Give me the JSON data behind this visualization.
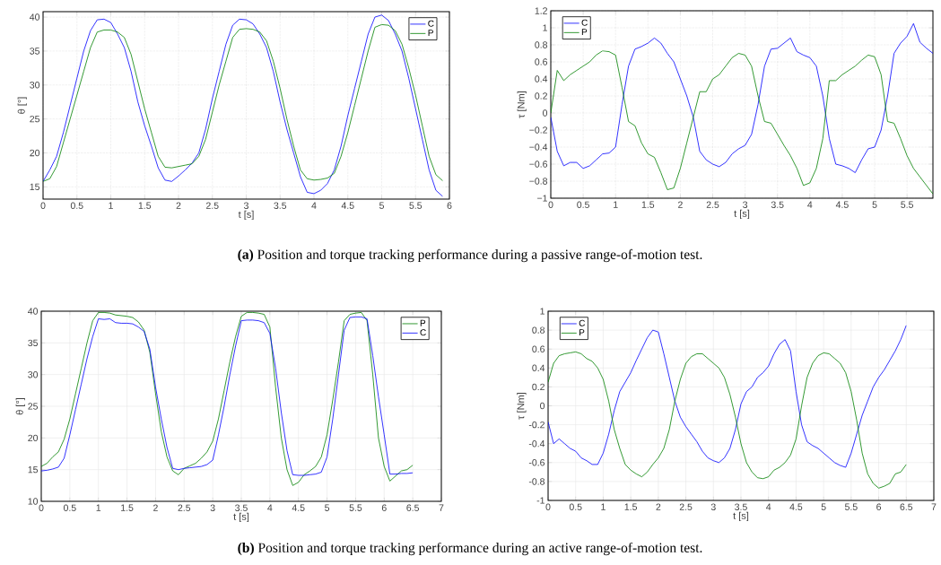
{
  "chart_data": [
    {
      "type": "line",
      "xlabel": "t [s]",
      "ylabel": "θ [°]",
      "xlim": [
        0,
        6
      ],
      "ylim": [
        13.2,
        40.8
      ],
      "xticks": [
        0,
        0.5,
        1,
        1.5,
        2,
        2.5,
        3,
        3.5,
        4,
        4.5,
        5,
        5.5,
        6
      ],
      "yticks": [
        15,
        20,
        25,
        30,
        35,
        40
      ],
      "grid": true,
      "legend": "top right",
      "annotations": [
        "**(a)** Position and torque tracking performance during a passive range-of-motion test."
      ],
      "x": [
        0,
        0.1,
        0.2,
        0.3,
        0.4,
        0.5,
        0.6,
        0.7,
        0.8,
        0.9,
        1.0,
        1.1,
        1.2,
        1.3,
        1.4,
        1.5,
        1.6,
        1.7,
        1.8,
        1.9,
        2.0,
        2.1,
        2.2,
        2.3,
        2.4,
        2.5,
        2.6,
        2.7,
        2.8,
        2.9,
        3.0,
        3.1,
        3.2,
        3.3,
        3.4,
        3.5,
        3.6,
        3.7,
        3.8,
        3.9,
        4.0,
        4.1,
        4.2,
        4.3,
        4.4,
        4.5,
        4.6,
        4.7,
        4.8,
        4.9,
        5.0,
        5.1,
        5.2,
        5.3,
        5.4,
        5.5,
        5.6,
        5.7,
        5.8,
        5.9
      ],
      "series": [
        {
          "name": "C",
          "color": "#0000ff",
          "values": [
            15.8,
            17.5,
            19.5,
            23,
            27,
            31,
            35,
            38,
            39.6,
            39.7,
            39.2,
            37.5,
            35.5,
            32,
            27.5,
            24,
            21,
            17.8,
            16,
            15.8,
            16.6,
            17.5,
            18.5,
            20,
            23.5,
            28,
            32,
            36,
            38.8,
            39.7,
            39.6,
            39,
            37.5,
            35.5,
            32,
            27.5,
            23.5,
            20,
            16.5,
            14.2,
            14,
            14.5,
            15.5,
            17.5,
            21,
            25.5,
            29.5,
            33.5,
            37.5,
            40,
            40.3,
            39.5,
            37.5,
            35,
            31,
            26.5,
            22,
            17.5,
            14.5,
            13.6
          ]
        },
        {
          "name": "P",
          "color": "#008000",
          "values": [
            15.8,
            16.2,
            18,
            21.5,
            25,
            28.5,
            32,
            35.5,
            37.8,
            38.1,
            38.1,
            37.8,
            37,
            34.5,
            30.5,
            26.5,
            23,
            19.5,
            17.9,
            17.8,
            18,
            18.2,
            18.4,
            19.5,
            22,
            26,
            30,
            33.5,
            37,
            38.2,
            38.3,
            38.2,
            37.8,
            36.5,
            33.5,
            29.5,
            25,
            21,
            17.5,
            16.2,
            16,
            16.1,
            16.3,
            17,
            19.5,
            23,
            27,
            31,
            35,
            38.5,
            38.9,
            38.8,
            38,
            36,
            32.5,
            28.5,
            24,
            19.5,
            16.8,
            15.9
          ]
        }
      ]
    },
    {
      "type": "line",
      "xlabel": "t [s]",
      "ylabel": "τ [Nm]",
      "xlim": [
        0,
        5.9
      ],
      "ylim": [
        -1,
        1.2
      ],
      "xticks": [
        0,
        0.5,
        1,
        1.5,
        2,
        2.5,
        3,
        3.5,
        4,
        4.5,
        5,
        5.5
      ],
      "yticks": [
        {
          "value": -1,
          "label": "−1"
        },
        {
          "value": -0.8,
          "label": "−0.8"
        },
        {
          "value": -0.6,
          "label": "−0.6"
        },
        {
          "value": -0.4,
          "label": "−0.4"
        },
        {
          "value": -0.2,
          "label": "−0.2"
        },
        0,
        0.2,
        0.4,
        0.6,
        0.8,
        1,
        1.2
      ],
      "grid": true,
      "legend": "top left",
      "x": [
        0,
        0.1,
        0.2,
        0.3,
        0.4,
        0.5,
        0.6,
        0.7,
        0.8,
        0.9,
        1.0,
        1.1,
        1.2,
        1.3,
        1.4,
        1.5,
        1.6,
        1.7,
        1.8,
        1.9,
        2.0,
        2.1,
        2.2,
        2.3,
        2.4,
        2.5,
        2.6,
        2.7,
        2.8,
        2.9,
        3.0,
        3.1,
        3.2,
        3.3,
        3.4,
        3.5,
        3.6,
        3.7,
        3.8,
        3.9,
        4.0,
        4.1,
        4.2,
        4.3,
        4.4,
        4.5,
        4.6,
        4.7,
        4.8,
        4.9,
        5.0,
        5.1,
        5.2,
        5.3,
        5.4,
        5.5,
        5.6,
        5.7,
        5.8,
        5.9
      ],
      "series": [
        {
          "name": "C",
          "color": "#0000ff",
          "values": [
            -0.05,
            -0.45,
            -0.62,
            -0.58,
            -0.58,
            -0.65,
            -0.62,
            -0.55,
            -0.48,
            -0.47,
            -0.4,
            0.1,
            0.55,
            0.75,
            0.78,
            0.82,
            0.88,
            0.82,
            0.7,
            0.6,
            0.4,
            0.2,
            -0.05,
            -0.45,
            -0.55,
            -0.6,
            -0.63,
            -0.58,
            -0.48,
            -0.42,
            -0.38,
            -0.25,
            0.1,
            0.55,
            0.75,
            0.76,
            0.82,
            0.88,
            0.72,
            0.68,
            0.65,
            0.55,
            0.2,
            -0.3,
            -0.6,
            -0.62,
            -0.65,
            -0.7,
            -0.55,
            -0.42,
            -0.4,
            -0.2,
            0.2,
            0.7,
            0.82,
            0.9,
            1.05,
            0.83,
            0.76,
            0.7
          ]
        },
        {
          "name": "P",
          "color": "#008000",
          "values": [
            0,
            0.5,
            0.38,
            0.45,
            0.5,
            0.55,
            0.6,
            0.68,
            0.73,
            0.72,
            0.68,
            0.3,
            -0.1,
            -0.15,
            -0.35,
            -0.48,
            -0.52,
            -0.7,
            -0.9,
            -0.88,
            -0.65,
            -0.35,
            -0.05,
            0.25,
            0.25,
            0.4,
            0.45,
            0.55,
            0.65,
            0.7,
            0.68,
            0.55,
            0.2,
            -0.1,
            -0.12,
            -0.25,
            -0.38,
            -0.5,
            -0.65,
            -0.85,
            -0.82,
            -0.65,
            -0.3,
            0.38,
            0.38,
            0.45,
            0.5,
            0.55,
            0.62,
            0.68,
            0.66,
            0.45,
            -0.1,
            -0.12,
            -0.3,
            -0.5,
            -0.65,
            -0.75,
            -0.85,
            -0.95
          ]
        }
      ]
    },
    {
      "type": "line",
      "xlabel": "t [s]",
      "ylabel": "θ [°]",
      "xlim": [
        0,
        7
      ],
      "ylim": [
        10,
        40
      ],
      "xticks": [
        0,
        0.5,
        1,
        1.5,
        2,
        2.5,
        3,
        3.5,
        4,
        4.5,
        5,
        5.5,
        6,
        6.5,
        7
      ],
      "yticks": [
        10,
        15,
        20,
        25,
        30,
        35,
        40
      ],
      "grid": true,
      "legend": "top right",
      "annotations": [
        "**(b)** Position and torque tracking performance during an active range-of-motion test."
      ],
      "x": [
        0,
        0.1,
        0.2,
        0.3,
        0.4,
        0.5,
        0.6,
        0.7,
        0.8,
        0.9,
        1.0,
        1.1,
        1.2,
        1.3,
        1.4,
        1.5,
        1.6,
        1.7,
        1.8,
        1.9,
        2.0,
        2.1,
        2.2,
        2.3,
        2.4,
        2.5,
        2.6,
        2.7,
        2.8,
        2.9,
        3.0,
        3.1,
        3.2,
        3.3,
        3.4,
        3.5,
        3.6,
        3.7,
        3.8,
        3.9,
        4.0,
        4.1,
        4.2,
        4.3,
        4.4,
        4.5,
        4.6,
        4.7,
        4.8,
        4.9,
        5.0,
        5.1,
        5.2,
        5.3,
        5.4,
        5.5,
        5.6,
        5.7,
        5.8,
        5.9,
        6.0,
        6.1,
        6.2,
        6.3,
        6.4,
        6.5
      ],
      "series": [
        {
          "name": "P",
          "color": "#008000",
          "values": [
            15.5,
            16,
            17,
            17.8,
            19.8,
            23,
            27,
            31,
            35,
            38.5,
            39.8,
            39.8,
            39.7,
            39.4,
            39.3,
            39.2,
            39,
            38.3,
            37,
            33.5,
            27,
            21,
            17,
            14.8,
            14.2,
            15.2,
            15.6,
            16,
            16.8,
            17.8,
            19.5,
            23,
            27.5,
            32,
            36,
            39.2,
            39.8,
            39.8,
            39.7,
            39.5,
            37.5,
            28,
            20,
            15,
            12.5,
            13,
            14.2,
            14.8,
            15.5,
            17,
            20.5,
            26,
            32,
            38.5,
            39.5,
            39.7,
            39.8,
            38.5,
            30,
            20,
            15.5,
            13.2,
            14,
            14.8,
            15,
            15.7
          ]
        },
        {
          "name": "C",
          "color": "#0000ff",
          "values": [
            14.8,
            14.9,
            15.1,
            15.4,
            16.8,
            20.5,
            24.5,
            28.5,
            32.5,
            36,
            38.8,
            38.7,
            38.8,
            38.2,
            38.1,
            38.1,
            38,
            37.5,
            36.8,
            34,
            28,
            23,
            18.5,
            15.2,
            15,
            15.2,
            15.3,
            15.4,
            15.5,
            15.8,
            16.5,
            20.5,
            25,
            30,
            34.5,
            38.5,
            38.6,
            38.6,
            38.5,
            38.2,
            36.5,
            31,
            24,
            18,
            14.2,
            14.1,
            14.1,
            14.2,
            14.3,
            14.6,
            17,
            23,
            30,
            37,
            39,
            39.1,
            39.1,
            38.8,
            33,
            26.5,
            20.5,
            14.3,
            14.3,
            14.4,
            14.4,
            14.5
          ]
        }
      ]
    },
    {
      "type": "line",
      "xlabel": "t [s]",
      "ylabel": "τ [Nm]",
      "xlim": [
        0,
        7
      ],
      "ylim": [
        -1,
        1
      ],
      "xticks": [
        0,
        0.5,
        1,
        1.5,
        2,
        2.5,
        3,
        3.5,
        4,
        4.5,
        5,
        5.5,
        6,
        6.5,
        7
      ],
      "yticks": [
        -1,
        -0.8,
        -0.6,
        -0.4,
        -0.2,
        0,
        0.2,
        0.4,
        0.6,
        0.8,
        1
      ],
      "grid": true,
      "legend": "top left",
      "x": [
        0,
        0.1,
        0.2,
        0.3,
        0.4,
        0.5,
        0.6,
        0.7,
        0.8,
        0.9,
        1.0,
        1.1,
        1.2,
        1.3,
        1.4,
        1.5,
        1.6,
        1.7,
        1.8,
        1.9,
        2.0,
        2.1,
        2.2,
        2.3,
        2.4,
        2.5,
        2.6,
        2.7,
        2.8,
        2.9,
        3.0,
        3.1,
        3.2,
        3.3,
        3.4,
        3.5,
        3.6,
        3.7,
        3.8,
        3.9,
        4.0,
        4.1,
        4.2,
        4.3,
        4.4,
        4.5,
        4.6,
        4.7,
        4.8,
        4.9,
        5.0,
        5.1,
        5.2,
        5.3,
        5.4,
        5.5,
        5.6,
        5.7,
        5.8,
        5.9,
        6.0,
        6.1,
        6.2,
        6.3,
        6.4,
        6.5
      ],
      "series": [
        {
          "name": "C",
          "color": "#0000ff",
          "values": [
            -0.17,
            -0.4,
            -0.35,
            -0.4,
            -0.45,
            -0.48,
            -0.55,
            -0.58,
            -0.62,
            -0.62,
            -0.5,
            -0.3,
            -0.05,
            0.15,
            0.25,
            0.35,
            0.48,
            0.6,
            0.72,
            0.8,
            0.78,
            0.55,
            0.3,
            0.05,
            -0.12,
            -0.22,
            -0.3,
            -0.38,
            -0.48,
            -0.55,
            -0.58,
            -0.6,
            -0.55,
            -0.45,
            -0.25,
            0.02,
            0.15,
            0.2,
            0.3,
            0.35,
            0.42,
            0.55,
            0.65,
            0.7,
            0.58,
            0.15,
            -0.2,
            -0.38,
            -0.42,
            -0.45,
            -0.5,
            -0.55,
            -0.6,
            -0.63,
            -0.65,
            -0.5,
            -0.3,
            -0.1,
            0.05,
            0.2,
            0.3,
            0.38,
            0.48,
            0.58,
            0.7,
            0.85
          ]
        },
        {
          "name": "P",
          "color": "#008000",
          "values": [
            0.25,
            0.45,
            0.53,
            0.55,
            0.56,
            0.57,
            0.55,
            0.5,
            0.47,
            0.4,
            0.28,
            0.05,
            -0.25,
            -0.45,
            -0.62,
            -0.68,
            -0.72,
            -0.75,
            -0.7,
            -0.62,
            -0.55,
            -0.45,
            -0.25,
            0.05,
            0.28,
            0.45,
            0.52,
            0.55,
            0.55,
            0.5,
            0.45,
            0.4,
            0.3,
            0.12,
            -0.12,
            -0.4,
            -0.6,
            -0.7,
            -0.76,
            -0.77,
            -0.75,
            -0.68,
            -0.65,
            -0.6,
            -0.52,
            -0.35,
            0,
            0.3,
            0.45,
            0.53,
            0.56,
            0.55,
            0.5,
            0.45,
            0.35,
            0.15,
            -0.15,
            -0.5,
            -0.72,
            -0.82,
            -0.87,
            -0.85,
            -0.82,
            -0.72,
            -0.7,
            -0.62
          ]
        }
      ]
    }
  ]
}
